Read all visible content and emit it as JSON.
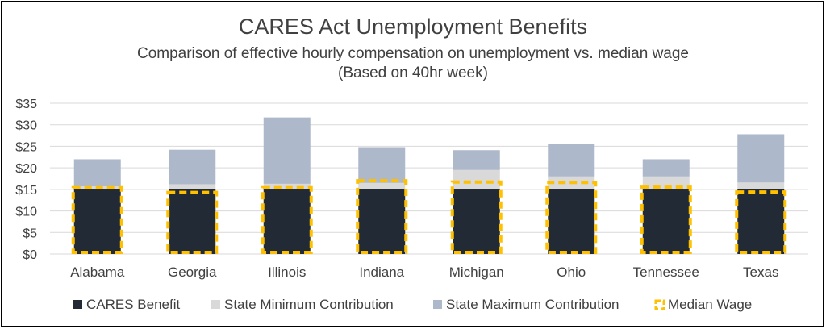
{
  "chart_data": {
    "type": "bar",
    "title": "CARES Act Unemployment Benefits",
    "subtitle": "Comparison of effective hourly compensation on unemployment vs. median wage",
    "subtitle2": "(Based on 40hr week)",
    "categories": [
      "Alabama",
      "Georgia",
      "Illinois",
      "Indiana",
      "Michigan",
      "Ohio",
      "Tennessee",
      "Texas"
    ],
    "series": [
      {
        "name": "CARES Benefit",
        "values": [
          15,
          15,
          15,
          15,
          15,
          15,
          15,
          15
        ],
        "color": "#222a35"
      },
      {
        "name": "State Minimum Contribution",
        "values": [
          0.7,
          1.2,
          1.3,
          1.5,
          4.5,
          3.0,
          3.0,
          1.6
        ],
        "color": "#d9d9d9"
      },
      {
        "name": "State Maximum Contribution",
        "values": [
          6.3,
          8.0,
          15.4,
          8.3,
          4.6,
          7.6,
          4.0,
          11.2
        ],
        "color": "#adb9ca"
      }
    ],
    "median_wage": {
      "name": "Median Wage",
      "values": [
        15.4,
        14.3,
        15.4,
        17.0,
        16.7,
        16.6,
        15.5,
        14.4
      ],
      "color": "#ffc000"
    },
    "ylim": [
      0,
      35
    ],
    "yticks": [
      "$0",
      "$5",
      "$10",
      "$15",
      "$20",
      "$25",
      "$30",
      "$35"
    ],
    "ytick_values": [
      0,
      5,
      10,
      15,
      20,
      25,
      30,
      35
    ],
    "grid": true,
    "legend_position": "bottom"
  }
}
